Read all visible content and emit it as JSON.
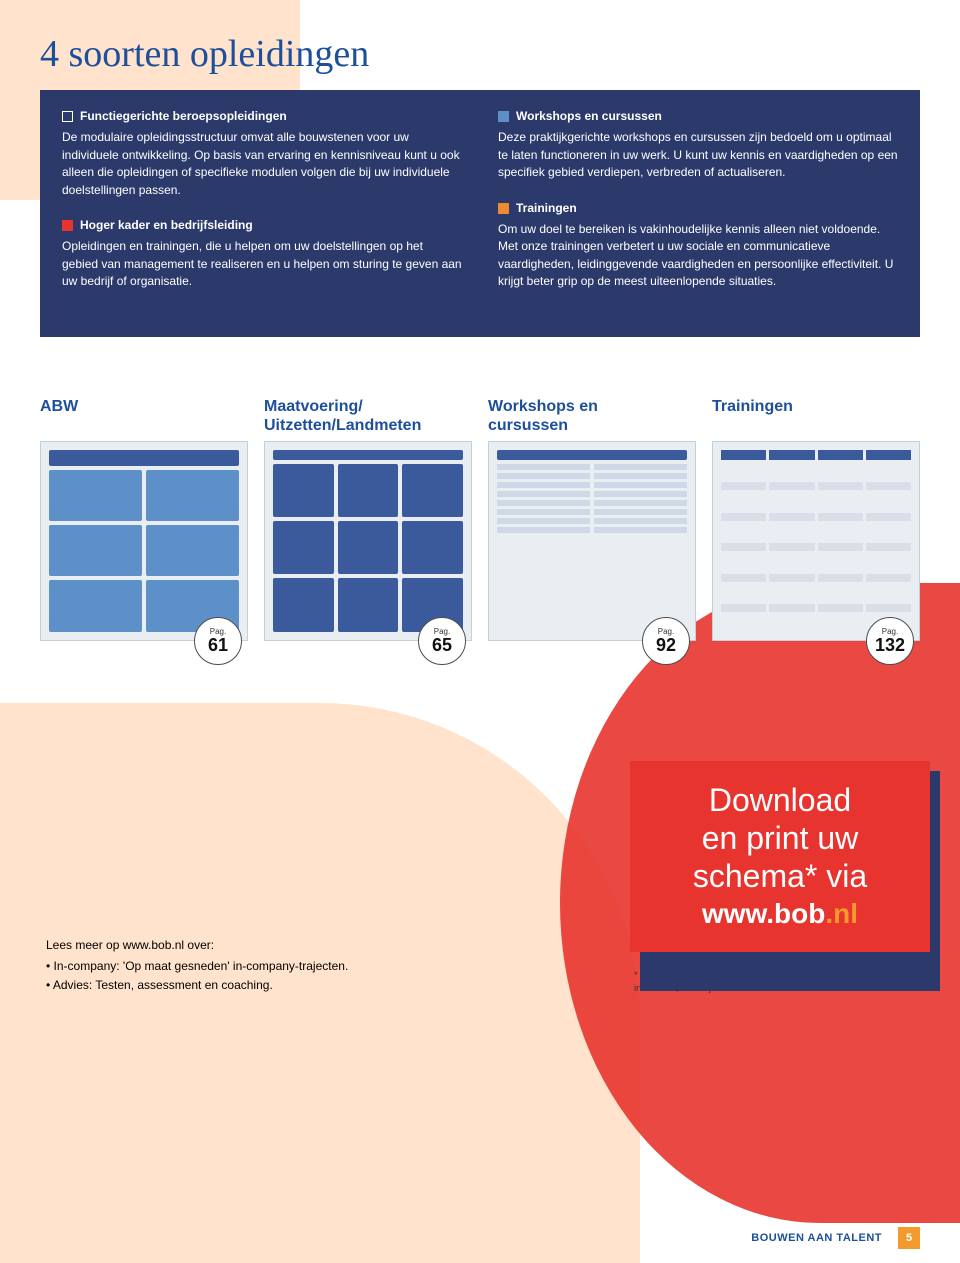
{
  "page": {
    "title": "4 soorten opleidingen",
    "background_colors": {
      "peach": "#ffe3cc",
      "red": "#e8342f",
      "white": "#ffffff"
    }
  },
  "navy": {
    "bg": "#2b3a6b",
    "text_color": "#ffffff",
    "fontsize_body": 12,
    "left": [
      {
        "marker": "outline",
        "title": "Functiegerichte beroepsopleidingen",
        "body": "De modulaire opleidingsstructuur omvat alle bouwstenen voor uw individuele ontwikkeling. Op basis van ervaring en kennisniveau kunt u ook alleen die opleidingen of specifieke modulen volgen die bij uw individuele doelstellingen passen."
      },
      {
        "marker": "red",
        "title": "Hoger kader en bedrijfsleiding",
        "body": "Opleidingen en trainingen, die u helpen om uw doelstellingen op het gebied van management te realiseren en u helpen om sturing te geven aan uw bedrijf of organisatie."
      }
    ],
    "right": [
      {
        "marker": "blue",
        "title": "Workshops en cursussen",
        "body": "Deze praktijkgerichte workshops en cursussen zijn bedoeld om u optimaal te laten functioneren in uw werk. U kunt uw kennis en vaardigheden op een specifiek gebied verdiepen, verbreden of actualiseren."
      },
      {
        "marker": "orange",
        "title": "Trainingen",
        "body": "Om uw doel te bereiken is vakinhoudelijke kennis alleen niet voldoende. Met onze trainingen verbetert u uw sociale en communicatieve vaardigheden, leidinggevende vaardigheden en persoonlijke effectiviteit. U krijgt beter grip op de meest uiteenlopende situaties."
      }
    ]
  },
  "thumbs": {
    "title_color": "#1d4f9b",
    "title_fontsize": 16,
    "badge_label": "Pag.",
    "items": [
      {
        "title": "ABW",
        "page": "61"
      },
      {
        "title": "Maatvoering/\nUitzetten/Landmeten",
        "page": "65"
      },
      {
        "title": "Workshops en\ncursussen",
        "page": "92"
      },
      {
        "title": "Trainingen",
        "page": "132"
      }
    ]
  },
  "lees": {
    "intro": "Lees meer op www.bob.nl over:",
    "bullets": [
      "In-company: 'Op maat gesneden' in-company-trajecten.",
      "Advies: Testen, assessment en coaching."
    ]
  },
  "download_box": {
    "bg": "#e8342f",
    "shadow": "#2b3a6b",
    "line1": "Download",
    "line2": "en print uw",
    "line3": "schema* via",
    "url_main": "www.bob",
    "url_ext": ".nl",
    "url_ext_color": "#f39a2e",
    "fontsize_big": 32,
    "note_prefix": "* De schema's die via ",
    "note_bold": "www.bob.nl",
    "note_suffix": " te downloaden zijn bevatten méér informatie, namelijk de instroomcriteria."
  },
  "footer": {
    "brand": "BOUWEN AAN TALENT",
    "brand_color": "#1d4f9b",
    "page_number": "5",
    "pn_bg": "#f39a2e"
  }
}
